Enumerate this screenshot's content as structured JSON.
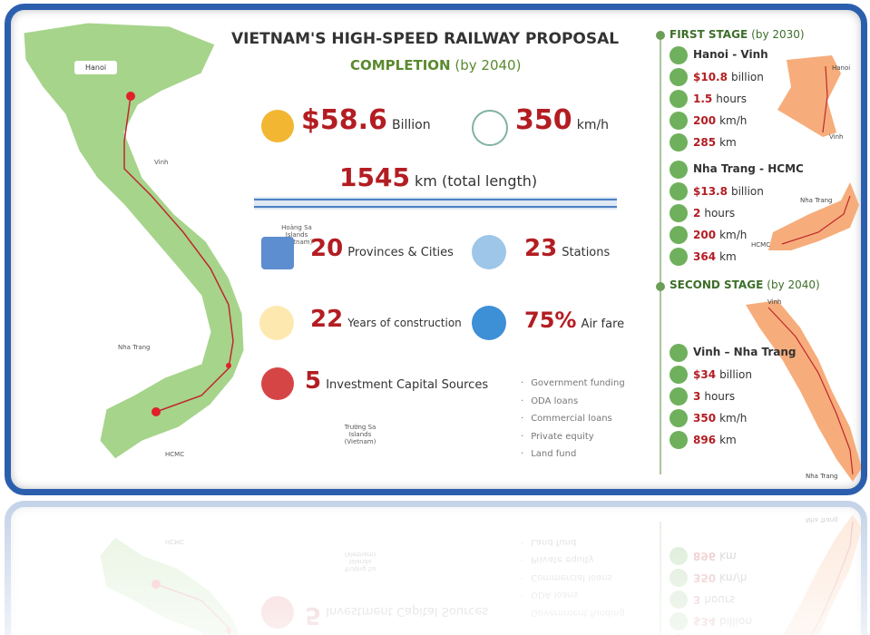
{
  "header": {
    "title": "VIETNAM'S HIGH-SPEED RAILWAY PROPOSAL",
    "subtitle": "COMPLETION",
    "subtitle_note": "(by 2040)"
  },
  "map": {
    "cities": [
      "Hanoi",
      "Vinh",
      "Nha Trang",
      "HCMC"
    ],
    "islands": [
      "Hoàng Sa Islands (Vietnam)",
      "Trường Sa Islands (Vietnam)"
    ]
  },
  "stats": {
    "cost": {
      "value": "$58.6",
      "unit": "Billion"
    },
    "speed": {
      "value": "350",
      "unit": "km/h"
    },
    "length": {
      "value": "1545",
      "unit": "km (total length)"
    },
    "provinces": {
      "value": "20",
      "unit": "Provinces & Cities"
    },
    "stations": {
      "value": "23",
      "unit": "Stations"
    },
    "years": {
      "value": "22",
      "unit": "Years of construction"
    },
    "airfare": {
      "value": "75%",
      "unit": "Air fare"
    },
    "capital": {
      "value": "5",
      "unit": "Investment Capital Sources"
    }
  },
  "capital_sources": [
    "Government funding",
    "ODA loans",
    "Commercial loans",
    "Private equity",
    "Land fund"
  ],
  "stages": [
    {
      "title": "FIRST STAGE",
      "note": "(by 2030)",
      "routes": [
        {
          "name": "Hanoi - Vinh",
          "cost": "$10.8",
          "cost_unit": "billion",
          "time": "1.5",
          "time_unit": "hours",
          "speed": "200",
          "speed_unit": "km/h",
          "length": "285",
          "length_unit": "km",
          "map_labels": [
            "Hanoi",
            "Vinh"
          ]
        },
        {
          "name": "Nha Trang - HCMC",
          "cost": "$13.8",
          "cost_unit": "billion",
          "time": "2",
          "time_unit": "hours",
          "speed": "200",
          "speed_unit": "km/h",
          "length": "364",
          "length_unit": "km",
          "map_labels": [
            "Nha Trang",
            "HCMC"
          ]
        }
      ]
    },
    {
      "title": "SECOND STAGE",
      "note": "(by 2040)",
      "routes": [
        {
          "name": "Vinh – Nha Trang",
          "cost": "$34",
          "cost_unit": "billion",
          "time": "3",
          "time_unit": "hours",
          "speed": "350",
          "speed_unit": "km/h",
          "length": "896",
          "length_unit": "km",
          "map_labels": [
            "Vinh",
            "Nha Trang"
          ]
        }
      ]
    }
  ]
}
